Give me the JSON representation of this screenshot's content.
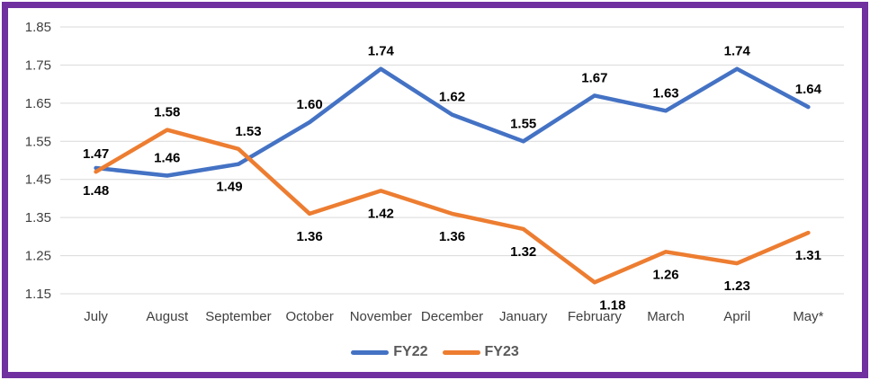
{
  "frame": {
    "border_color": "#7030A0",
    "background": "#ffffff"
  },
  "colors": {
    "gridline": "#D9D9D9",
    "tick_label": "#404040",
    "category_label": "#404040",
    "data_label": "#000000",
    "legend_label": "#595959"
  },
  "chart_data": {
    "type": "line",
    "title": "",
    "xlabel": "",
    "ylabel": "",
    "grid": true,
    "legend_position": "bottom",
    "categories": [
      "July",
      "August",
      "September",
      "October",
      "November",
      "December",
      "January",
      "February",
      "March",
      "April",
      "May*"
    ],
    "series": [
      {
        "name": "FY22",
        "color": "#4472C4",
        "values": [
          1.48,
          1.46,
          1.49,
          1.6,
          1.74,
          1.62,
          1.55,
          1.67,
          1.63,
          1.74,
          1.64
        ],
        "label_side": [
          "below",
          "above",
          "below",
          "above",
          "above",
          "above",
          "above",
          "above",
          "above",
          "above",
          "above"
        ],
        "label_dx": [
          0,
          0,
          -10,
          0,
          0,
          0,
          0,
          0,
          0,
          0,
          0
        ]
      },
      {
        "name": "FY23",
        "color": "#ED7D31",
        "values": [
          1.47,
          1.58,
          1.53,
          1.36,
          1.42,
          1.36,
          1.32,
          1.18,
          1.26,
          1.23,
          1.31
        ],
        "label_side": [
          "above",
          "above",
          "above",
          "below",
          "below",
          "below",
          "below",
          "below",
          "below",
          "below",
          "below"
        ],
        "label_dx": [
          0,
          0,
          11,
          0,
          0,
          0,
          0,
          20,
          0,
          0,
          0
        ]
      }
    ],
    "y_axis": {
      "min": 1.15,
      "max": 1.85,
      "step": 0.1,
      "tick_labels": [
        "1.85",
        "1.75",
        "1.65",
        "1.55",
        "1.45",
        "1.35",
        "1.25",
        "1.15"
      ]
    }
  }
}
